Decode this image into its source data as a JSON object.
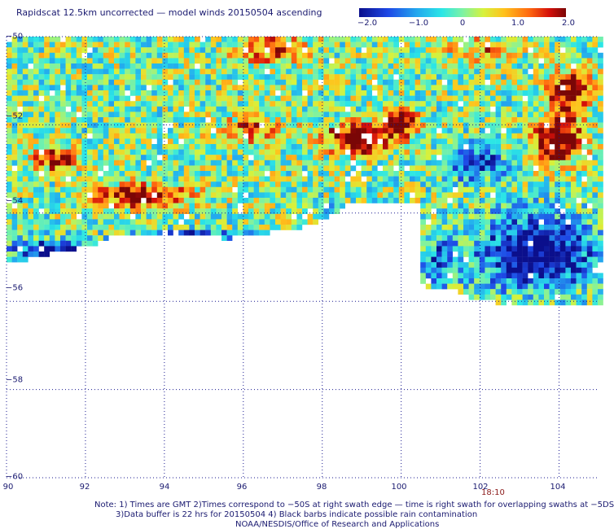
{
  "title": "Rapidscat 12.5km uncorrected — model winds 20150504 ascending",
  "colorbar": {
    "ticks": [
      "−2.0",
      "−1.0",
      "0",
      "1.0",
      "2.0"
    ],
    "range": [
      -2.0,
      2.0
    ]
  },
  "map": {
    "lon_range": [
      90,
      105
    ],
    "lat_range": [
      -60,
      -50
    ],
    "lon_ticks": [
      "90",
      "92",
      "94",
      "96",
      "98",
      "100",
      "102",
      "104"
    ],
    "lat_ticks": [
      "−50",
      "−52",
      "−54",
      "−56",
      "−58",
      "−60"
    ],
    "grid": "dotted"
  },
  "swath_time": "18:10",
  "notes": {
    "line1": "Note: 1) Times are GMT 2)Times correspond to −50S at right swath edge — time is right swath for overlapping swaths at −5DS",
    "line2": "3)Data buffer is 22 hrs for 20150504 4) Black barbs indicate possible rain contamination",
    "line3": "NOAA/NESDIS/Office of Research and Applications"
  }
}
